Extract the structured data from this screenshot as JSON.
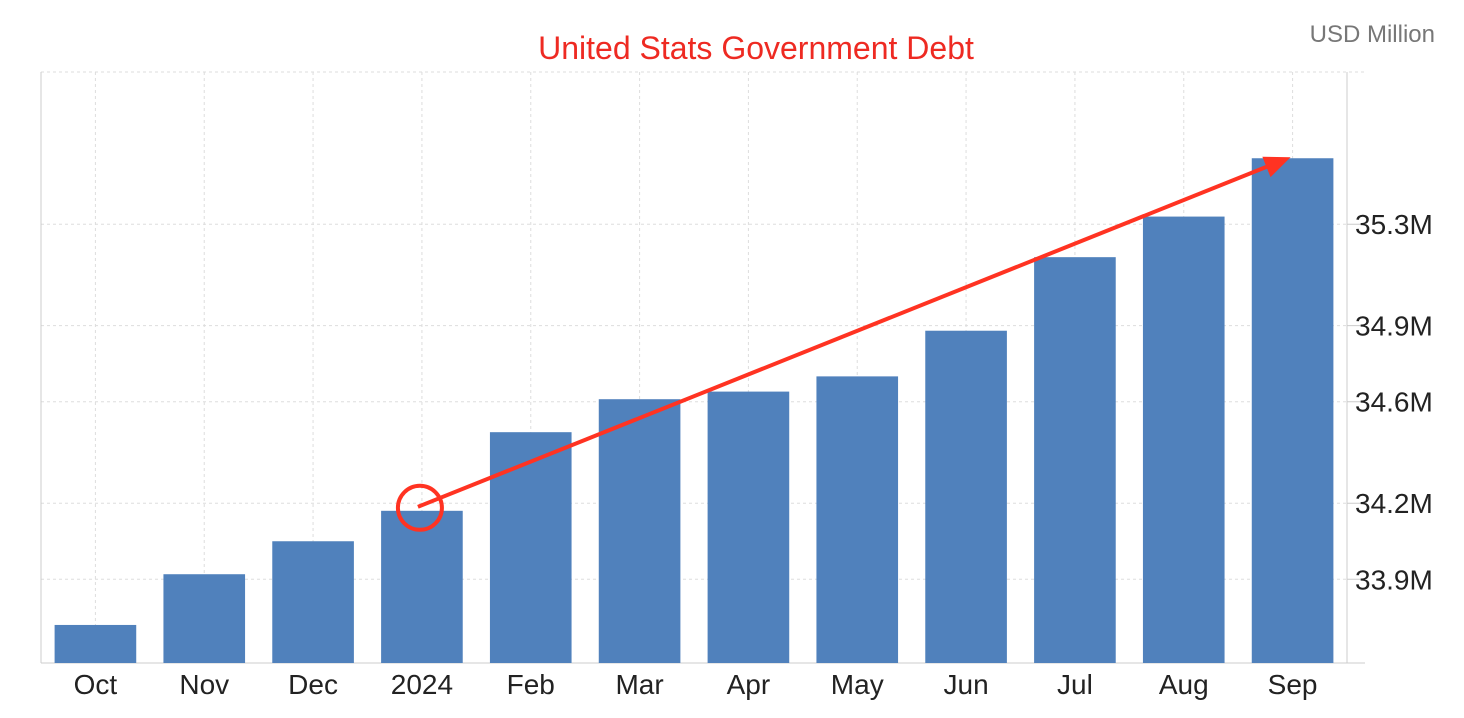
{
  "chart_data": {
    "type": "bar",
    "title": "United Stats Government Debt",
    "unit_label": "USD Million",
    "categories": [
      "Oct",
      "Nov",
      "Dec",
      "2024",
      "Feb",
      "Mar",
      "Apr",
      "May",
      "Jun",
      "Jul",
      "Aug",
      "Sep"
    ],
    "values": [
      33.72,
      33.92,
      34.05,
      34.17,
      34.48,
      34.61,
      34.64,
      34.7,
      34.88,
      35.17,
      35.33,
      35.56
    ],
    "yticks": [
      33.9,
      34.2,
      34.6,
      34.9,
      35.3
    ],
    "ytick_labels": [
      "33.9M",
      "34.2M",
      "34.6M",
      "34.9M",
      "35.3M"
    ],
    "ylim": [
      33.57,
      35.9
    ],
    "y_axis_position": "right",
    "grid": true,
    "annotation": {
      "type": "arrow",
      "from_category": "2024",
      "to_category": "Sep",
      "circle_at": "2024",
      "color": "#ff3322"
    }
  },
  "colors": {
    "bar": "#5081bc",
    "title": "#ee2a22",
    "grid": "#dddddd",
    "axis": "#cccccc",
    "tick_text": "#222222",
    "unit_text": "#777777"
  }
}
